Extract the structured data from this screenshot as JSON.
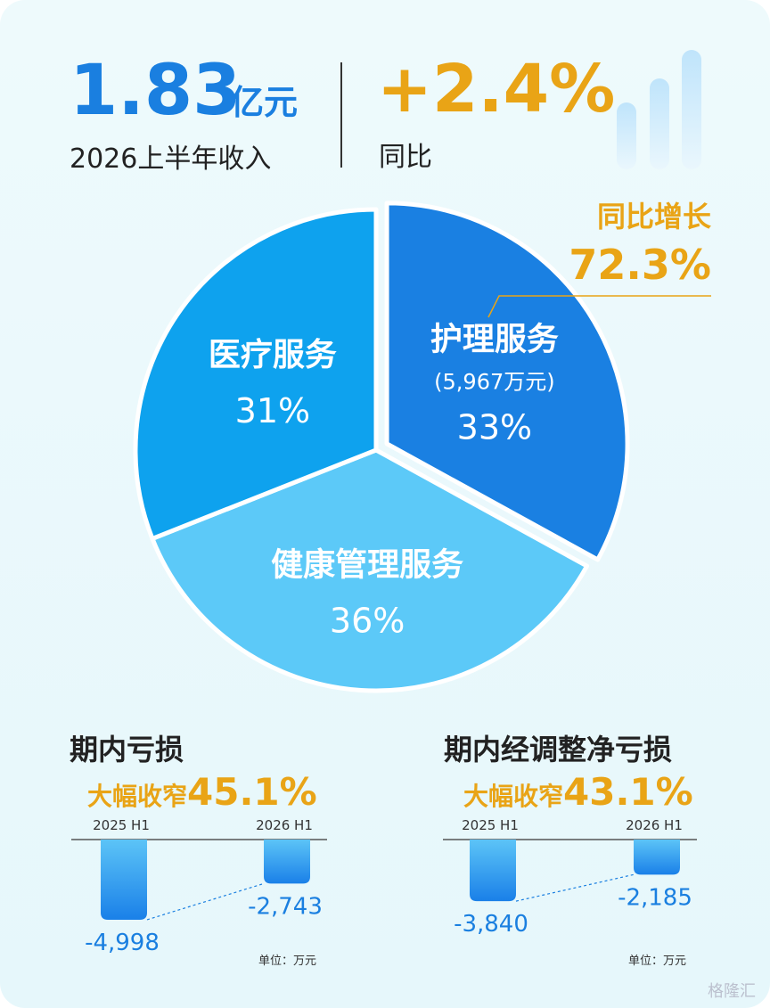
{
  "header": {
    "revenue": "1.83",
    "revenue_unit": "亿元",
    "revenue_label": "2026上半年收入",
    "yoy": "+2.4%",
    "yoy_label": "同比"
  },
  "chart_data": [
    {
      "type": "pie",
      "categories": [
        "护理服务",
        "健康管理服务",
        "医疗服务"
      ],
      "values": [
        33,
        36,
        31
      ],
      "value_labels": [
        "33%",
        "36%",
        "31%"
      ],
      "colors": [
        "#1a80e2",
        "#5cc9f8",
        "#0ea2ee"
      ],
      "detail": "(5,967万元)",
      "callout": {
        "label": "同比增长",
        "value": "72.3%"
      }
    },
    {
      "type": "bar",
      "title": "期内亏损",
      "subtitle": "大幅收窄",
      "highlight": "45.1%",
      "categories": [
        "2025 H1",
        "2026 H1"
      ],
      "values": [
        -4998,
        -2743
      ],
      "value_labels": [
        "-4,998",
        "-2,743"
      ],
      "unit": "单位：万元",
      "color": "#1a8ae8"
    },
    {
      "type": "bar",
      "title": "期内经调整净亏损",
      "subtitle": "大幅收窄",
      "highlight": "43.1%",
      "categories": [
        "2025 H1",
        "2026 H1"
      ],
      "values": [
        -3840,
        -2185
      ],
      "value_labels": [
        "-3,840",
        "-2,185"
      ],
      "unit": "单位：万元",
      "color": "#1a8ae8"
    }
  ],
  "footer": {
    "watermark": "格隆汇"
  }
}
